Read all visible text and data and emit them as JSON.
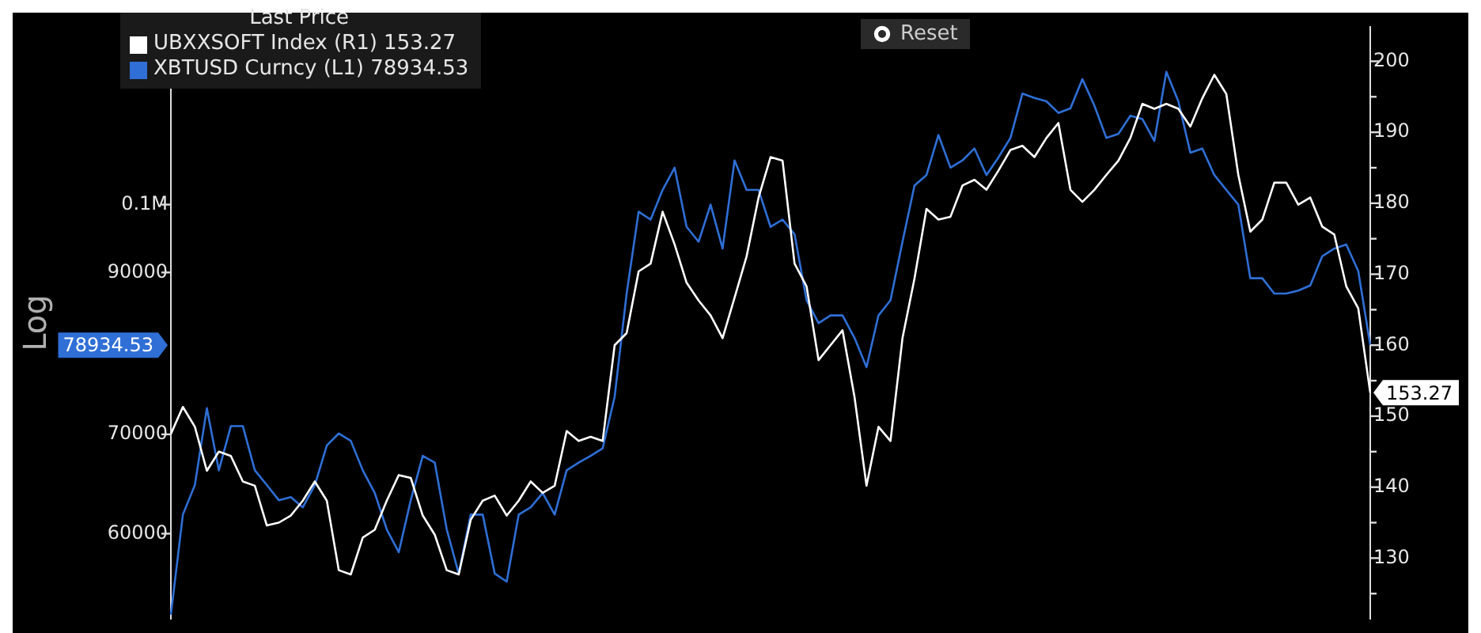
{
  "chart_data": {
    "type": "line",
    "legend_title": "Last Price",
    "ylabel": "Log",
    "log": "y",
    "grid": false,
    "legend": "top left",
    "marker": "none",
    "categories": [
      null,
      null,
      null,
      null,
      null,
      null,
      null,
      null,
      null,
      null,
      null,
      null,
      null,
      null,
      null,
      null,
      null,
      null,
      null,
      null,
      null,
      null,
      null,
      null,
      null,
      null,
      null,
      null,
      null,
      null,
      null,
      null,
      null,
      null,
      null,
      null,
      null,
      null,
      null,
      null,
      null,
      null,
      null,
      null,
      null,
      null,
      null,
      null,
      null,
      null,
      null,
      null,
      null,
      null,
      null,
      null,
      null,
      null,
      null,
      null,
      null,
      null,
      null,
      null,
      null,
      null,
      null,
      null,
      null,
      null,
      null,
      null,
      null,
      null,
      null,
      null,
      null,
      null,
      null,
      null,
      null,
      null,
      null,
      null,
      null,
      null,
      null,
      null,
      null,
      null,
      null,
      null,
      null,
      null,
      null,
      null,
      null,
      null,
      null,
      null,
      null
    ],
    "series": [
      {
        "name": "UBXXSOFT Index (R1) 153.27",
        "color": "#ffffff",
        "axis": "y2",
        "values": [
          147.5,
          151.3,
          148.5,
          142.3,
          145,
          144.4,
          140.8,
          140.2,
          134.6,
          135,
          136,
          138.1,
          140.8,
          138.1,
          128.3,
          127.7,
          132.9,
          134,
          138.1,
          141.7,
          141.3,
          136,
          133.3,
          128.3,
          127.7,
          135.4,
          138.1,
          138.8,
          136,
          138.1,
          140.8,
          139.2,
          140.2,
          147.9,
          146.5,
          147.1,
          146.5,
          160,
          161.7,
          170.4,
          171.5,
          178.8,
          174.2,
          168.8,
          166.3,
          164.2,
          161,
          166.7,
          172.5,
          180.8,
          186.5,
          186,
          171.5,
          168.3,
          157.9,
          160,
          162.1,
          152.7,
          140.2,
          148.5,
          146.5,
          161,
          169.4,
          179.2,
          177.7,
          178.1,
          182.5,
          183.3,
          181.9,
          184.6,
          187.5,
          188.1,
          186.5,
          189.2,
          191.3,
          181.9,
          180.2,
          181.9,
          184,
          186,
          189.2,
          194,
          193.3,
          194,
          193.3,
          190.8,
          194.8,
          198.1,
          195.4,
          184,
          176,
          177.7,
          182.9,
          182.9,
          179.8,
          180.8,
          176.7,
          175.6,
          168.3,
          165.2,
          153.3
        ]
      },
      {
        "name": "XBTUSD Curncy (L1) 78934.53",
        "color": "#2f6fd6",
        "axis": "y",
        "values": [
          52900,
          61800,
          64700,
          72900,
          66200,
          70900,
          70900,
          66200,
          64700,
          63200,
          63500,
          62500,
          64700,
          68800,
          70100,
          69300,
          66200,
          63900,
          60400,
          58300,
          63200,
          67700,
          67000,
          60400,
          56400,
          61800,
          61800,
          56400,
          55700,
          61800,
          62500,
          63900,
          61800,
          66200,
          67000,
          67700,
          68500,
          74200,
          87100,
          98900,
          97700,
          102300,
          105900,
          96600,
          94400,
          100000,
          93400,
          107100,
          102300,
          102300,
          96600,
          97700,
          95500,
          86200,
          83200,
          84200,
          84200,
          81300,
          77700,
          84200,
          86200,
          94400,
          103000,
          104700,
          111400,
          105900,
          107100,
          109100,
          104700,
          107600,
          110900,
          118800,
          118000,
          117400,
          115300,
          116100,
          121500,
          116600,
          110900,
          111600,
          114800,
          114200,
          110400,
          122900,
          117400,
          108400,
          109100,
          104700,
          102300,
          100000,
          89200,
          89200,
          87100,
          87100,
          87500,
          88200,
          92300,
          93400,
          94000,
          90200,
          80400
        ]
      }
    ],
    "ylim": [
      52600,
      131700
    ],
    "yticks": [
      60000,
      70000,
      90000,
      {
        "value": 100000,
        "label": "0.1M"
      }
    ],
    "y2lim": [
      121.5,
      204.8
    ],
    "y2ticks": [
      {
        "value": 125,
        "label": null
      },
      130,
      {
        "value": 135,
        "label": null
      },
      140,
      {
        "value": 145,
        "label": null
      },
      150,
      {
        "value": 155,
        "label": null
      },
      160,
      {
        "value": 165,
        "label": null
      },
      170,
      {
        "value": 175,
        "label": null
      },
      180,
      {
        "value": 185,
        "label": null
      },
      190,
      {
        "value": 195,
        "label": null
      },
      200
    ],
    "annotations": [
      "153.27",
      "78934.53",
      "Reset"
    ]
  }
}
